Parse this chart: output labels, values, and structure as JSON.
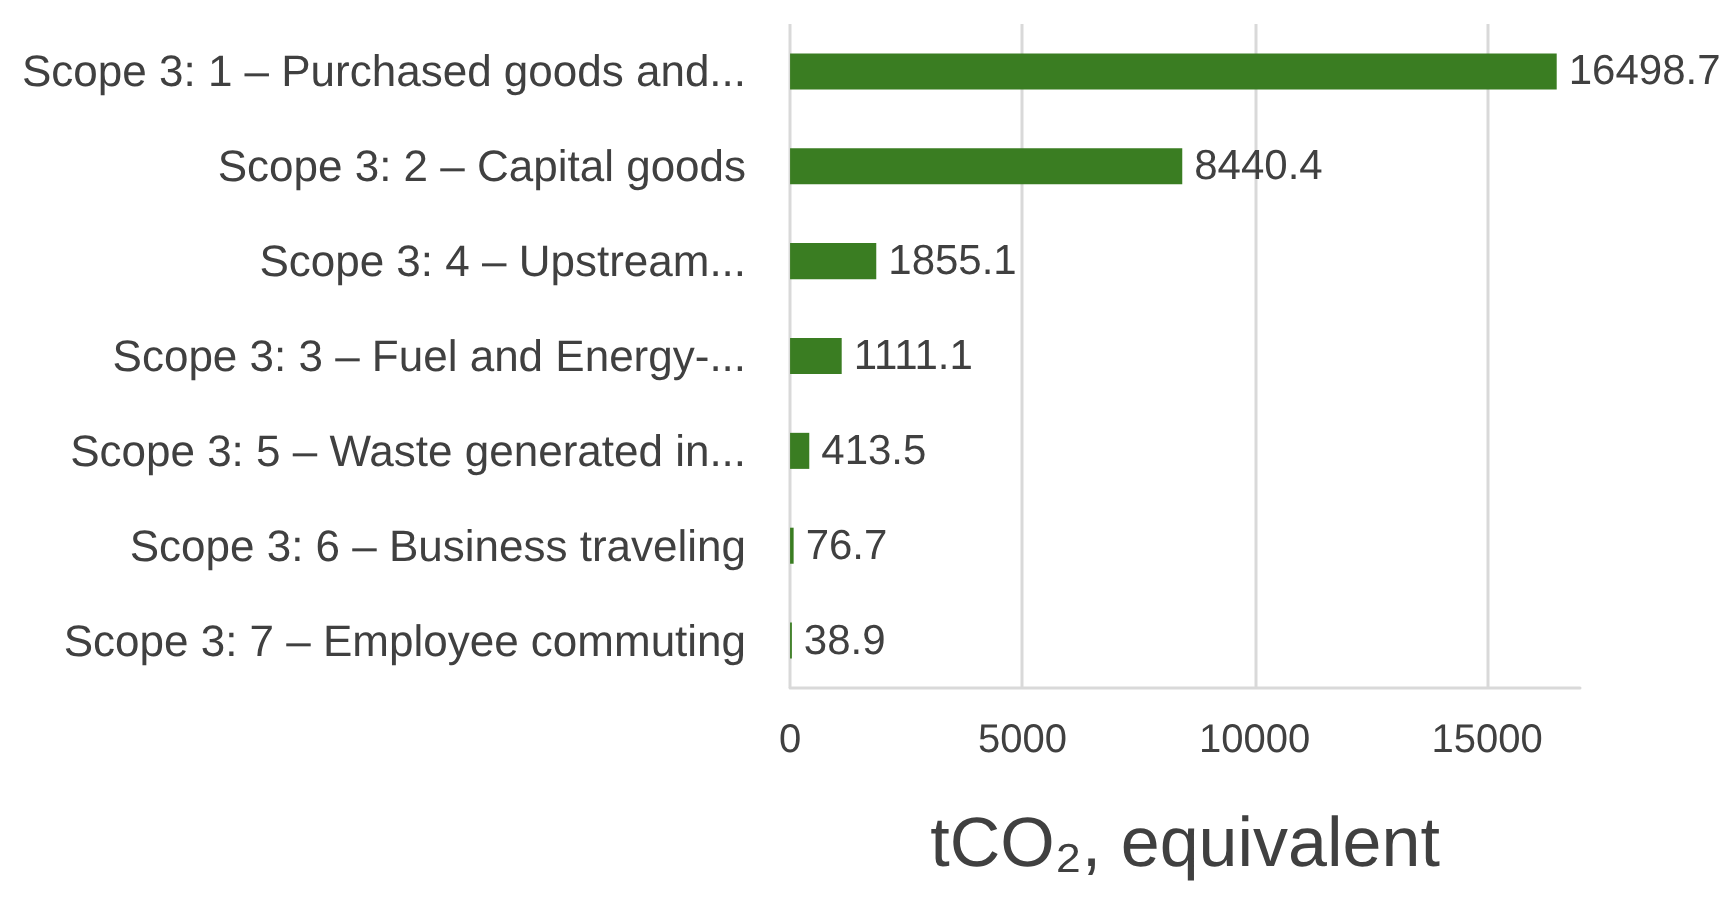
{
  "chart_data": {
    "type": "bar",
    "orientation": "horizontal",
    "xlabel": "tCO₂, equivalent",
    "categories": [
      "Scope 3: 1 – Purchased goods and...",
      "Scope 3: 2 – Capital goods",
      "Scope 3: 4 – Upstream...",
      "Scope 3: 3 – Fuel and Energy-...",
      "Scope 3: 5 – Waste generated in...",
      "Scope 3: 6 – Business traveling",
      "Scope 3: 7 – Employee commuting"
    ],
    "values": [
      16498.7,
      8440.4,
      1855.1,
      1111.1,
      413.5,
      76.7,
      38.9
    ],
    "color": "#3a7d22",
    "data_labels": true,
    "xlim": [
      0,
      17000
    ],
    "xticks": [
      0,
      5000,
      10000,
      15000
    ],
    "grid": "x"
  }
}
